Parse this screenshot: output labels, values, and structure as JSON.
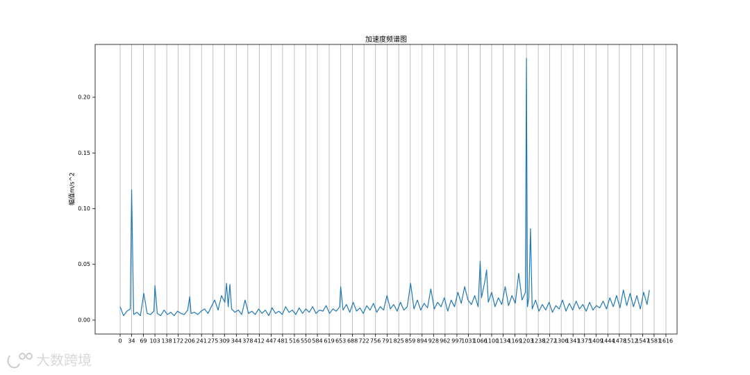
{
  "chart_data": {
    "type": "line",
    "title": "加速度频谱图",
    "y_label": "幅值m/s^2",
    "x": [
      0,
      10,
      20,
      30,
      34,
      40,
      50,
      60,
      70,
      80,
      90,
      100,
      103,
      110,
      120,
      130,
      140,
      150,
      160,
      170,
      180,
      190,
      200,
      206,
      210,
      220,
      230,
      240,
      250,
      260,
      270,
      280,
      290,
      300,
      310,
      315,
      320,
      325,
      330,
      340,
      350,
      360,
      370,
      380,
      390,
      400,
      410,
      420,
      430,
      440,
      450,
      460,
      470,
      480,
      490,
      500,
      510,
      520,
      530,
      540,
      550,
      560,
      570,
      580,
      590,
      600,
      610,
      620,
      630,
      640,
      650,
      653,
      660,
      670,
      680,
      690,
      700,
      710,
      720,
      730,
      740,
      750,
      760,
      770,
      780,
      790,
      800,
      810,
      820,
      830,
      840,
      850,
      860,
      870,
      880,
      890,
      900,
      910,
      920,
      930,
      940,
      950,
      960,
      970,
      980,
      990,
      1000,
      1010,
      1020,
      1030,
      1040,
      1050,
      1060,
      1066,
      1070,
      1080,
      1085,
      1090,
      1100,
      1110,
      1120,
      1130,
      1140,
      1150,
      1160,
      1170,
      1180,
      1190,
      1200,
      1203,
      1206,
      1210,
      1215,
      1220,
      1230,
      1240,
      1250,
      1260,
      1270,
      1280,
      1290,
      1300,
      1310,
      1320,
      1330,
      1340,
      1350,
      1360,
      1370,
      1380,
      1390,
      1400,
      1410,
      1420,
      1430,
      1440,
      1450,
      1460,
      1470,
      1480,
      1490,
      1500,
      1510,
      1520,
      1530,
      1540,
      1550,
      1560,
      1567
    ],
    "series": [
      {
        "color": "#1f77b4",
        "values": [
          0.012,
          0.004,
          0.008,
          0.01,
          0.117,
          0.005,
          0.007,
          0.004,
          0.024,
          0.006,
          0.005,
          0.008,
          0.031,
          0.006,
          0.004,
          0.009,
          0.005,
          0.007,
          0.004,
          0.008,
          0.006,
          0.005,
          0.009,
          0.021,
          0.006,
          0.007,
          0.005,
          0.008,
          0.01,
          0.006,
          0.012,
          0.018,
          0.009,
          0.022,
          0.016,
          0.033,
          0.012,
          0.032,
          0.01,
          0.007,
          0.009,
          0.005,
          0.018,
          0.006,
          0.008,
          0.005,
          0.01,
          0.006,
          0.009,
          0.004,
          0.011,
          0.006,
          0.008,
          0.005,
          0.012,
          0.007,
          0.009,
          0.005,
          0.011,
          0.006,
          0.01,
          0.007,
          0.012,
          0.006,
          0.009,
          0.008,
          0.013,
          0.006,
          0.01,
          0.008,
          0.012,
          0.03,
          0.009,
          0.014,
          0.007,
          0.016,
          0.008,
          0.011,
          0.006,
          0.013,
          0.009,
          0.015,
          0.007,
          0.012,
          0.009,
          0.022,
          0.01,
          0.014,
          0.008,
          0.016,
          0.009,
          0.012,
          0.033,
          0.01,
          0.018,
          0.009,
          0.015,
          0.011,
          0.028,
          0.01,
          0.016,
          0.012,
          0.02,
          0.008,
          0.018,
          0.012,
          0.025,
          0.015,
          0.03,
          0.018,
          0.014,
          0.022,
          0.012,
          0.053,
          0.02,
          0.035,
          0.045,
          0.016,
          0.025,
          0.012,
          0.02,
          0.014,
          0.03,
          0.013,
          0.022,
          0.015,
          0.042,
          0.018,
          0.025,
          0.235,
          0.012,
          0.02,
          0.082,
          0.01,
          0.018,
          0.008,
          0.014,
          0.009,
          0.016,
          0.007,
          0.013,
          0.01,
          0.018,
          0.008,
          0.015,
          0.009,
          0.017,
          0.01,
          0.014,
          0.008,
          0.016,
          0.009,
          0.013,
          0.011,
          0.017,
          0.01,
          0.02,
          0.012,
          0.022,
          0.011,
          0.027,
          0.013,
          0.024,
          0.012,
          0.022,
          0.01,
          0.025,
          0.014,
          0.027
        ]
      }
    ],
    "xlim": [
      -74,
      1649
    ],
    "ylim": [
      -0.0125,
      0.2474
    ],
    "xticks": [
      0,
      34,
      69,
      103,
      138,
      172,
      206,
      241,
      275,
      309,
      344,
      378,
      412,
      447,
      481,
      516,
      550,
      584,
      619,
      653,
      688,
      722,
      756,
      791,
      825,
      859,
      894,
      928,
      962,
      997,
      1031,
      1066,
      1100,
      1134,
      1169,
      1203,
      1238,
      1272,
      1306,
      1341,
      1375,
      1409,
      1444,
      1478,
      1512,
      1547,
      1581,
      1616
    ],
    "yticks": [
      {
        "value": 0,
        "label": "0.00"
      },
      {
        "value": 0.05,
        "label": "0.05"
      },
      {
        "value": 0.1,
        "label": "0.10"
      },
      {
        "value": 0.15,
        "label": "0.15"
      },
      {
        "value": 0.2,
        "label": "0.20"
      }
    ],
    "grid": "x"
  },
  "watermark": "大数跨境"
}
